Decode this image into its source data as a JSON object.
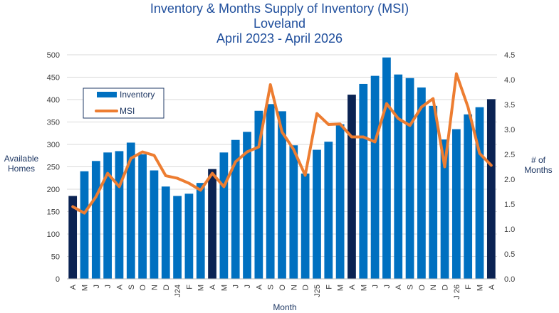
{
  "chart_data": {
    "type": "bar",
    "title": "Inventory & Months Supply of Inventory (MSI)",
    "subtitle": "Loveland",
    "subtitle2": "April 2023 - April 2026",
    "xlabel": "Month",
    "ylabel_left": [
      "Available",
      "Homes"
    ],
    "ylabel_right": [
      "# of",
      "Months"
    ],
    "ylim_left": [
      0,
      500
    ],
    "ylim_right": [
      0,
      4.5
    ],
    "yticks_left": [
      "0",
      "50",
      "100",
      "150",
      "200",
      "250",
      "300",
      "350",
      "400",
      "450",
      "500"
    ],
    "yticks_right": [
      "0.0",
      "0.5",
      "1.0",
      "1.5",
      "2.0",
      "2.5",
      "3.0",
      "3.5",
      "4.0",
      "4.5"
    ],
    "legend_placement": "top-left",
    "colors": {
      "bar": "#0070c0",
      "bar_highlight": "#0b2353",
      "line": "#ed7d31"
    },
    "categories": [
      "A",
      "M",
      "J",
      "J",
      "A",
      "S",
      "O",
      "N",
      "D",
      "J24",
      "F",
      "M",
      "A",
      "M",
      "J",
      "J",
      "A",
      "S",
      "O",
      "N",
      "D",
      "J25",
      "F",
      "M",
      "A",
      "M",
      "J",
      "J",
      "A",
      "S",
      "O",
      "N",
      "D",
      "J 26",
      "F",
      "M",
      "A"
    ],
    "highlight": [
      true,
      false,
      false,
      false,
      false,
      false,
      false,
      false,
      false,
      false,
      false,
      false,
      true,
      false,
      false,
      false,
      false,
      false,
      false,
      false,
      false,
      false,
      false,
      false,
      true,
      false,
      false,
      false,
      false,
      false,
      false,
      false,
      false,
      false,
      false,
      false,
      true
    ],
    "series": [
      {
        "name": "Inventory",
        "kind": "bar",
        "axis": "left",
        "values": [
          185,
          240,
          263,
          282,
          285,
          304,
          278,
          242,
          206,
          185,
          190,
          214,
          245,
          282,
          310,
          328,
          375,
          390,
          374,
          298,
          235,
          288,
          306,
          345,
          411,
          435,
          453,
          494,
          456,
          448,
          427,
          386,
          311,
          334,
          367,
          383,
          401
        ]
      },
      {
        "name": "MSI",
        "kind": "line",
        "axis": "right",
        "values": [
          1.45,
          1.32,
          1.65,
          2.12,
          1.85,
          2.42,
          2.55,
          2.48,
          2.07,
          2.02,
          1.92,
          1.78,
          2.12,
          1.85,
          2.35,
          2.55,
          2.65,
          3.9,
          2.95,
          2.6,
          2.08,
          3.32,
          3.1,
          3.11,
          2.85,
          2.85,
          2.75,
          3.52,
          3.22,
          3.08,
          3.45,
          3.62,
          2.25,
          4.12,
          3.45,
          2.52,
          2.28
        ]
      }
    ]
  }
}
